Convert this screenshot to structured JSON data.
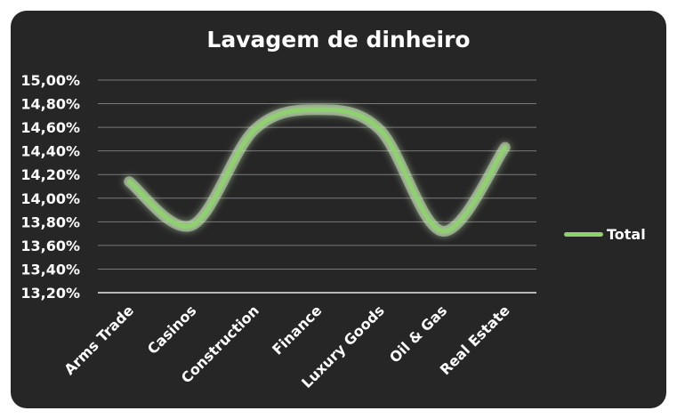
{
  "chart_data": {
    "type": "line",
    "title": "Lavagem de dinheiro",
    "categories": [
      "Arms Trade",
      "Casinos",
      "Construction",
      "Finance",
      "Luxury Goods",
      "Oil & Gas",
      "Real Estate"
    ],
    "series": [
      {
        "name": "Total",
        "values": [
          14.14,
          13.77,
          14.58,
          14.75,
          14.58,
          13.72,
          14.43
        ],
        "color": "#8fd16f"
      }
    ],
    "y_ticks": [
      "15,00%",
      "14,80%",
      "14,60%",
      "14,40%",
      "14,20%",
      "14,00%",
      "13,80%",
      "13,60%",
      "13,40%",
      "13,20%"
    ],
    "ylim": [
      13.2,
      15.0
    ],
    "ystep": 0.2,
    "grid": true,
    "smooth": true,
    "legend_position": "right"
  }
}
